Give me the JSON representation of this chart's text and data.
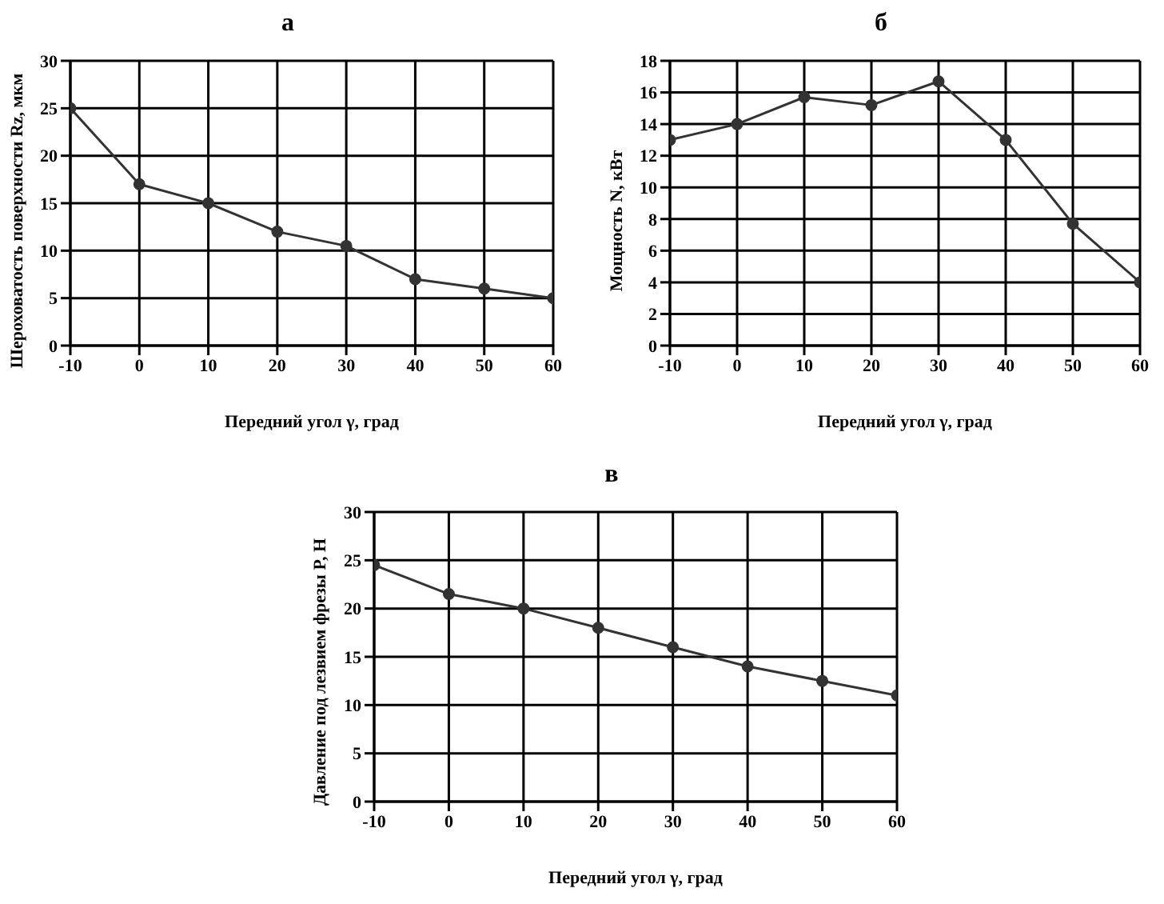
{
  "chart_data": [
    {
      "type": "line",
      "title": "а",
      "xlabel": "Передний угол γ, град",
      "ylabel": "Шероховатость поверхности Rz, мкм",
      "x": [
        -10,
        0,
        10,
        20,
        30,
        40,
        50,
        60
      ],
      "series": [
        {
          "color": "#333333",
          "values": [
            25,
            17,
            15,
            12,
            10.5,
            7,
            6,
            5
          ]
        }
      ],
      "xlim": [
        -10,
        60
      ],
      "xticks": [
        -10,
        0,
        10,
        20,
        30,
        40,
        50,
        60
      ],
      "ylim": [
        0,
        30
      ],
      "yticks": [
        0,
        5,
        10,
        15,
        20,
        25,
        30
      ],
      "grid": true,
      "marker": "circle",
      "line_style": "solid"
    },
    {
      "type": "line",
      "title": "б",
      "xlabel": "Передний угол γ, град",
      "ylabel": "Мощность N, кВт",
      "x": [
        -10,
        0,
        10,
        20,
        30,
        40,
        50,
        60
      ],
      "series": [
        {
          "color": "#333333",
          "values": [
            13,
            14,
            15.7,
            15.2,
            16.7,
            13,
            7.7,
            4
          ]
        }
      ],
      "xlim": [
        -10,
        60
      ],
      "xticks": [
        -10,
        0,
        10,
        20,
        30,
        40,
        50,
        60
      ],
      "ylim": [
        0,
        18
      ],
      "yticks": [
        0,
        2,
        4,
        6,
        8,
        10,
        12,
        14,
        16,
        18
      ],
      "grid": true,
      "marker": "circle",
      "line_style": "solid"
    },
    {
      "type": "line",
      "title": "в",
      "xlabel": "Передний угол γ, град",
      "ylabel": "Давление под лезвием фрезы P, Н",
      "x": [
        -10,
        0,
        10,
        20,
        30,
        40,
        50,
        60
      ],
      "series": [
        {
          "color": "#333333",
          "values": [
            24.5,
            21.5,
            20,
            18,
            16,
            14,
            12.5,
            11
          ]
        }
      ],
      "xlim": [
        -10,
        60
      ],
      "xticks": [
        -10,
        0,
        10,
        20,
        30,
        40,
        50,
        60
      ],
      "ylim": [
        0,
        30
      ],
      "yticks": [
        0,
        5,
        10,
        15,
        20,
        25,
        30
      ],
      "grid": true,
      "marker": "circle",
      "line_style": "solid"
    }
  ]
}
